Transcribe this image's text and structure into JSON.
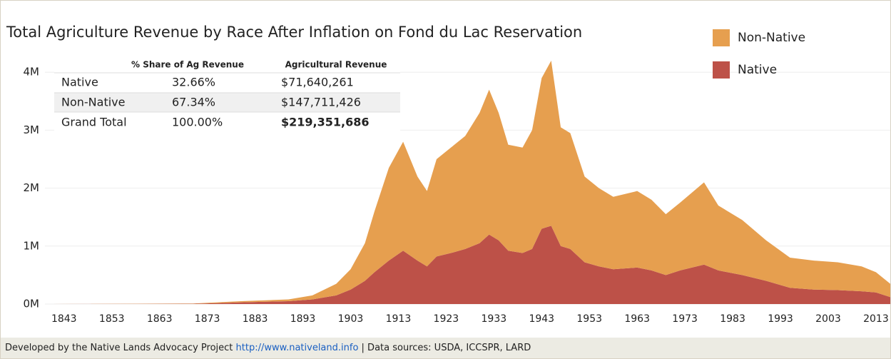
{
  "chart_data": {
    "type": "stacked-area",
    "title": "Total Agriculture Revenue by Race After Inflation on Fond du Lac Reservation",
    "x": [
      1840,
      1870,
      1875,
      1880,
      1890,
      1895,
      1900,
      1903,
      1906,
      1908,
      1911,
      1914,
      1917,
      1919,
      1921,
      1924,
      1927,
      1930,
      1932,
      1934,
      1936,
      1939,
      1941,
      1943,
      1945,
      1947,
      1949,
      1952,
      1955,
      1958,
      1963,
      1966,
      1969,
      1972,
      1977,
      1980,
      1985,
      1990,
      1995,
      2000,
      2005,
      2010,
      2013,
      2016
    ],
    "series": [
      {
        "name": "Non-Native",
        "color": "#e69f4f",
        "values": [
          0,
          5000,
          15000,
          20000,
          30000,
          70000,
          200000,
          350000,
          650000,
          1050000,
          1600000,
          1880000,
          1450000,
          1300000,
          1680000,
          1820000,
          1950000,
          2250000,
          2500000,
          2200000,
          1830000,
          1820000,
          2050000,
          2600000,
          2850000,
          2050000,
          2000000,
          1480000,
          1350000,
          1250000,
          1320000,
          1220000,
          1050000,
          1170000,
          1420000,
          1120000,
          950000,
          700000,
          520000,
          500000,
          480000,
          430000,
          350000,
          230000
        ]
      },
      {
        "name": "Native",
        "color": "#bd5148",
        "values": [
          0,
          5000,
          15000,
          30000,
          50000,
          80000,
          150000,
          250000,
          400000,
          550000,
          750000,
          920000,
          750000,
          650000,
          820000,
          880000,
          950000,
          1050000,
          1200000,
          1100000,
          920000,
          880000,
          950000,
          1300000,
          1350000,
          1000000,
          950000,
          720000,
          650000,
          600000,
          630000,
          580000,
          500000,
          580000,
          680000,
          580000,
          500000,
          400000,
          280000,
          250000,
          240000,
          220000,
          200000,
          120000
        ]
      }
    ],
    "xlim": [
      1839,
      2016
    ],
    "xticks": [
      1843,
      1853,
      1863,
      1873,
      1883,
      1893,
      1903,
      1913,
      1923,
      1933,
      1943,
      1953,
      1963,
      1973,
      1983,
      1993,
      2003,
      2013
    ],
    "ylim": [
      0,
      4200000
    ],
    "yticks": [
      {
        "value": 0,
        "label": "0M"
      },
      {
        "value": 1000000,
        "label": "1M"
      },
      {
        "value": 2000000,
        "label": "2M"
      },
      {
        "value": 3000000,
        "label": "3M"
      },
      {
        "value": 4000000,
        "label": "4M"
      }
    ],
    "grid": true,
    "table": {
      "header": [
        "% Share of Ag Revenue",
        "Agricultural Revenue"
      ],
      "rows": [
        [
          "Native",
          "32.66%",
          "$71,640,261"
        ],
        [
          "Non-Native",
          "67.34%",
          "$147,711,426"
        ],
        [
          "Grand Total",
          "100.00%",
          "$219,351,686"
        ]
      ]
    }
  },
  "footer": {
    "text": "Developed by the Native Lands Advocacy Project",
    "link": "http://www.nativeland.info",
    "sources": "| Data sources: USDA, ICCSPR, LARD"
  }
}
